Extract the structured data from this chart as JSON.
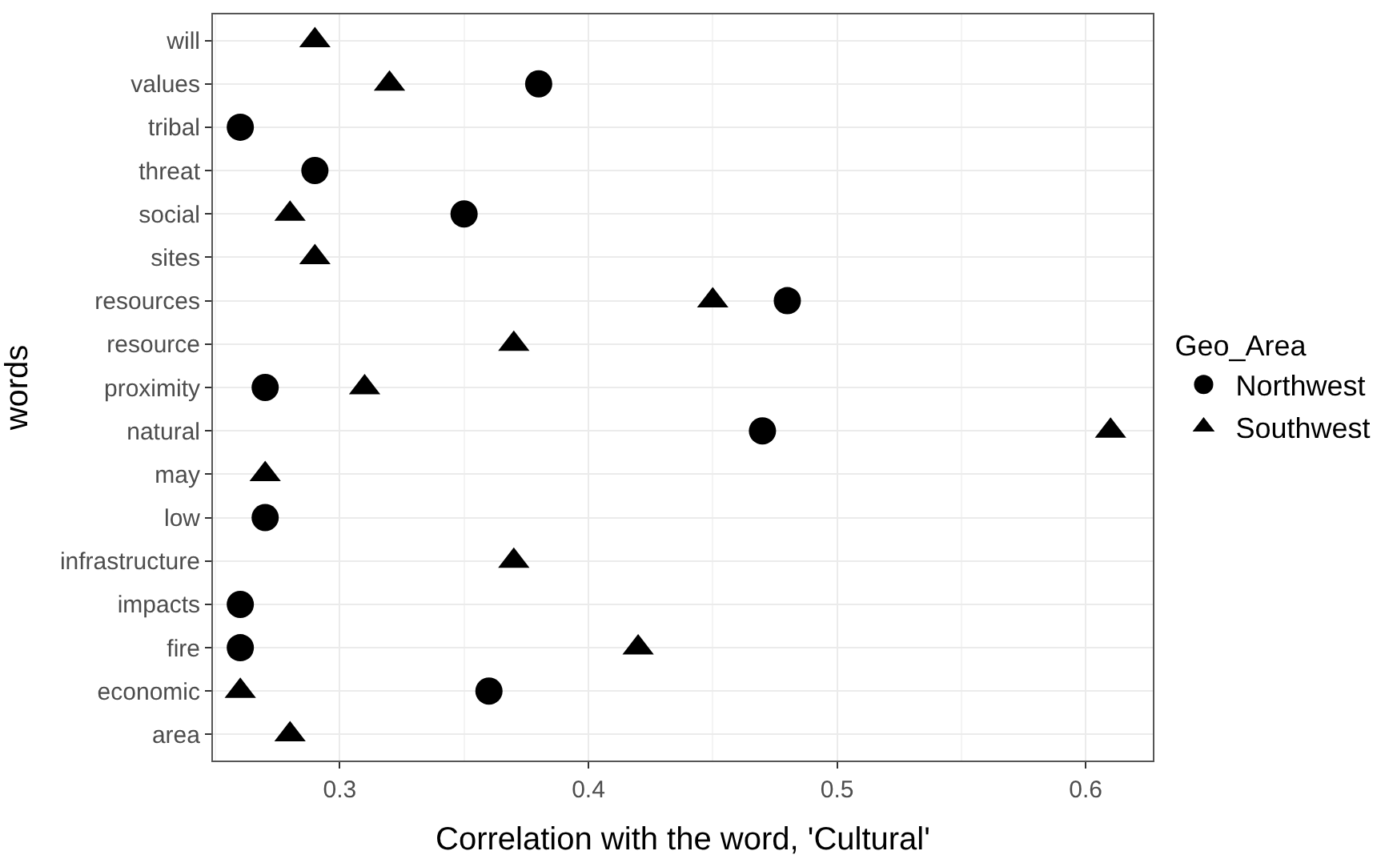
{
  "chart_data": {
    "type": "scatter",
    "orientation": "horizontal",
    "xlabel": "Correlation with the word, 'Cultural'",
    "ylabel": "words",
    "legend_title": "Geo_Area",
    "categories": [
      "will",
      "values",
      "tribal",
      "threat",
      "social",
      "sites",
      "resources",
      "resource",
      "proximity",
      "natural",
      "may",
      "low",
      "infrastructure",
      "impacts",
      "fire",
      "economic",
      "area"
    ],
    "series": [
      {
        "name": "Northwest",
        "color": "#000000",
        "marker": "circle",
        "values": [
          null,
          0.38,
          0.26,
          0.29,
          0.35,
          null,
          0.48,
          null,
          0.27,
          0.47,
          null,
          0.27,
          null,
          0.26,
          0.26,
          0.36,
          null
        ]
      },
      {
        "name": "Southwest",
        "color": "#000000",
        "marker": "triangle",
        "values": [
          0.29,
          0.32,
          null,
          null,
          0.28,
          0.29,
          0.45,
          0.37,
          0.31,
          0.61,
          0.27,
          null,
          0.37,
          null,
          0.42,
          0.26,
          0.28
        ]
      }
    ],
    "xlim": [
      0.249,
      0.627
    ],
    "xticks": [
      0.3,
      0.4,
      0.5,
      0.6
    ],
    "grid": true,
    "legend": "right"
  }
}
